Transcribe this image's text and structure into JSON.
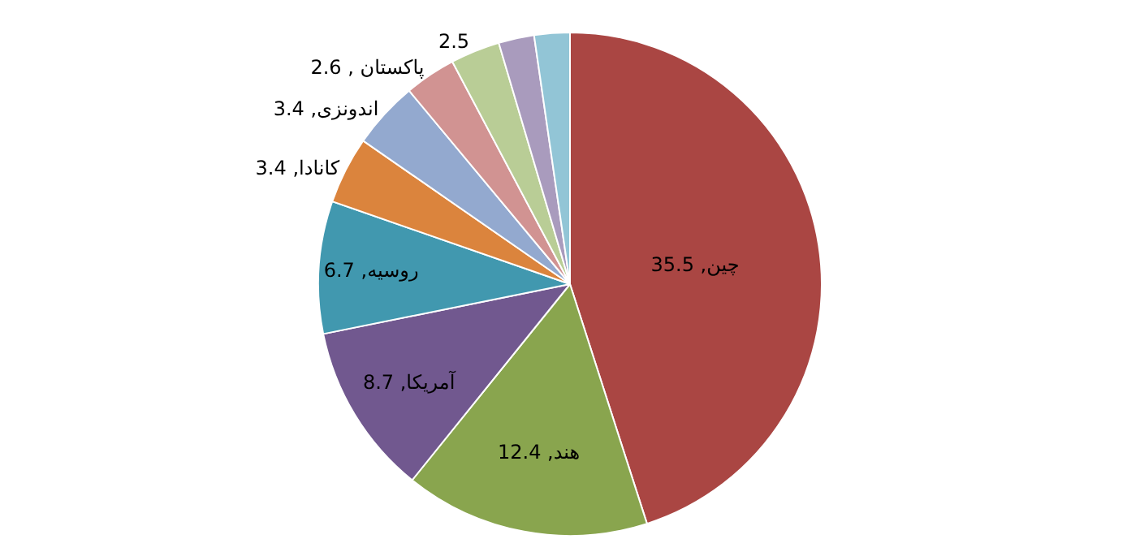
{
  "chart_data": {
    "type": "pie",
    "categories": [
      "چین, 35.5",
      "هند, 12.4",
      "آمریکا, 8.7",
      "روسیه, 6.7",
      "کانادا, 3.4",
      "اندونزی, 3.4",
      "پاکستان , 2.6",
      null,
      null,
      null
    ],
    "values": [
      35.5,
      12.4,
      8.7,
      6.7,
      3.4,
      3.4,
      2.6,
      2.5,
      1.8,
      1.8
    ],
    "value_labels": [
      null,
      null,
      null,
      null,
      null,
      null,
      null,
      "2.5",
      null,
      null
    ],
    "colors": [
      "#aa4643",
      "#89a54e",
      "#71588f",
      "#4198af",
      "#db843d",
      "#93a9cf",
      "#d19392",
      "#b9cd96",
      "#a99bbd",
      "#92c5d6"
    ],
    "legend": false
  }
}
